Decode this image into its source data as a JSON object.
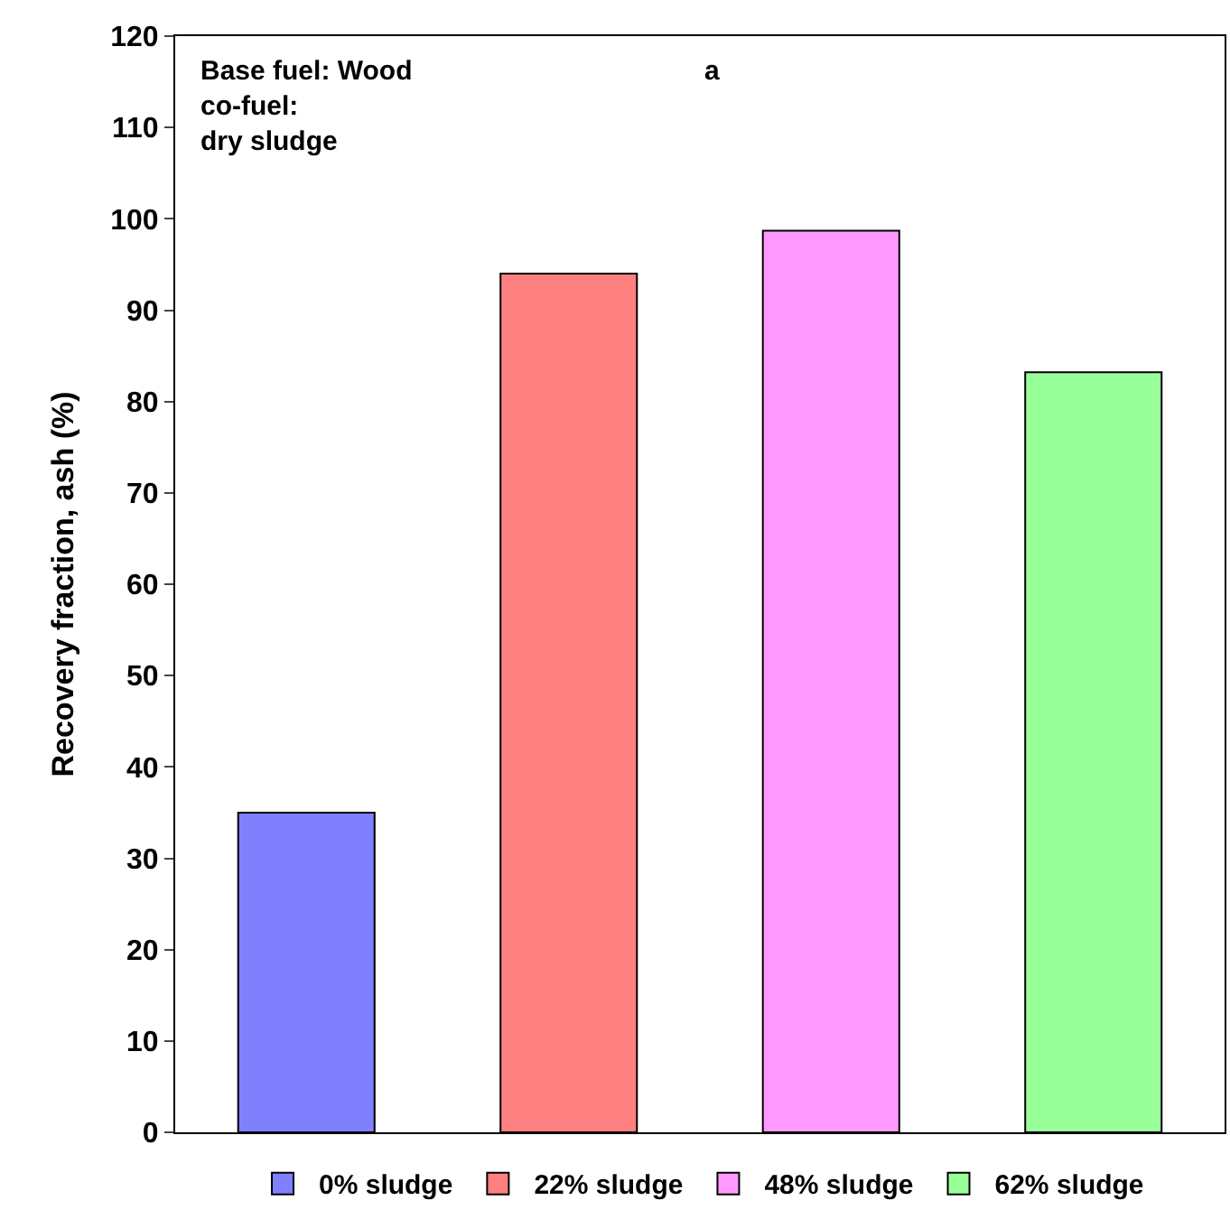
{
  "chart_data": {
    "type": "bar",
    "ylabel": "Recovery fraction, ash (%)",
    "categories": [
      null,
      null,
      null,
      null
    ],
    "series": [
      {
        "name": "0% sludge",
        "color": "#8080ff",
        "values": [
          35,
          null,
          null,
          null
        ]
      },
      {
        "name": "22% sludge",
        "color": "#ff8080",
        "values": [
          null,
          94,
          null,
          null
        ]
      },
      {
        "name": "48% sludge",
        "color": "#ff99ff",
        "values": [
          null,
          null,
          98.7,
          null
        ]
      },
      {
        "name": "62% sludge",
        "color": "#99ff99",
        "values": [
          null,
          null,
          null,
          83.2
        ]
      }
    ],
    "ylim": [
      0,
      120
    ],
    "yticks": [
      0,
      10,
      20,
      30,
      40,
      50,
      60,
      70,
      80,
      90,
      100,
      110,
      120
    ],
    "annotations": [
      "Base fuel: Wood\nco-fuel:\ndry sludge",
      "a"
    ],
    "legend": "bottom",
    "tick_labels": "y"
  }
}
